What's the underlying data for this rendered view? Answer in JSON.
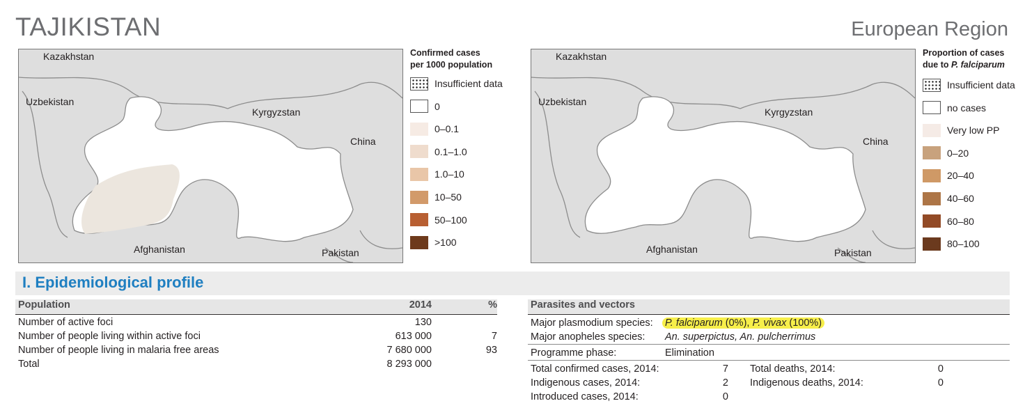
{
  "header": {
    "country": "TAJIKISTAN",
    "region": "European Region"
  },
  "map1": {
    "labels": {
      "kazakhstan": "Kazakhstan",
      "uzbekistan": "Uzbekistan",
      "kyrgyzstan": "Kyrgyzstan",
      "china": "China",
      "afghanistan": "Afghanistan",
      "pakistan": "Pakistan"
    },
    "legend": {
      "title_line1": "Confirmed cases",
      "title_line2": "per 1000 population",
      "items": [
        {
          "label": "Insufficient data",
          "style": "dots",
          "color": "#ffffff"
        },
        {
          "label": "0",
          "style": "outline",
          "color": "#ffffff"
        },
        {
          "label": "0–0.1",
          "style": "fill",
          "color": "#f6ebe4"
        },
        {
          "label": "0.1–1.0",
          "style": "fill",
          "color": "#efdccd"
        },
        {
          "label": "1.0–10",
          "style": "fill",
          "color": "#e9c6a8"
        },
        {
          "label": "10–50",
          "style": "fill",
          "color": "#d29a6a"
        },
        {
          "label": "50–100",
          "style": "fill",
          "color": "#b85f32"
        },
        {
          "label": ">100",
          "style": "fill",
          "color": "#6e3a1c"
        }
      ]
    },
    "colors": {
      "neighbors": "#dedede",
      "country": "#ffffff",
      "focus": "#ece6de"
    }
  },
  "map2": {
    "labels": {
      "kazakhstan": "Kazakhstan",
      "uzbekistan": "Uzbekistan",
      "kyrgyzstan": "Kyrgyzstan",
      "china": "China",
      "afghanistan": "Afghanistan",
      "pakistan": "Pakistan"
    },
    "legend": {
      "title_line1": "Proportion of cases",
      "title_line2_prefix": "due to ",
      "title_line2_italic": "P. falciparum",
      "items": [
        {
          "label": "Insufficient data",
          "style": "dots",
          "color": "#ffffff"
        },
        {
          "label": "no cases",
          "style": "outline",
          "color": "#ffffff"
        },
        {
          "label": "Very low PP",
          "style": "fill",
          "color": "#f5ebe6"
        },
        {
          "label": "0–20",
          "style": "fill",
          "color": "#c8a27d"
        },
        {
          "label": "20–40",
          "style": "fill",
          "color": "#cf9966"
        },
        {
          "label": "40–60",
          "style": "fill",
          "color": "#ad7546"
        },
        {
          "label": "60–80",
          "style": "fill",
          "color": "#924a26"
        },
        {
          "label": "80–100",
          "style": "fill",
          "color": "#6b3a1e"
        }
      ]
    }
  },
  "section": {
    "title": "I. Epidemiological profile"
  },
  "population": {
    "headers": {
      "label": "Population",
      "year": "2014",
      "pct": "%"
    },
    "rows": [
      {
        "label": "Number of active foci",
        "value": "130",
        "pct": ""
      },
      {
        "label": "Number of people living within active foci",
        "value": "613 000",
        "pct": "7"
      },
      {
        "label": "Number of people living in malaria free areas",
        "value": "7 680 000",
        "pct": "93"
      },
      {
        "label": "Total",
        "value": "8 293 000",
        "pct": ""
      }
    ]
  },
  "parasites": {
    "header": "Parasites and vectors",
    "plasmodium_label": "Major plasmodium species:",
    "pf_name": "P. falciparum",
    "pf_pct": " (0%), ",
    "pv_name": "P. vivax",
    "pv_pct": " (100%)",
    "anopheles_label": "Major anopheles species:",
    "anopheles_value": "An. superpictus, An. pulcherrimus",
    "phase_label": "Programme phase:",
    "phase_value": "Elimination",
    "cases": [
      {
        "label": "Total confirmed cases, 2014:",
        "value": "7"
      },
      {
        "label": "Indigenous cases, 2014:",
        "value": "2"
      },
      {
        "label": "Introduced cases, 2014:",
        "value": "0"
      }
    ],
    "deaths": [
      {
        "label": "Total deaths, 2014:",
        "value": "0"
      },
      {
        "label": "Indigenous deaths, 2014:",
        "value": "0"
      }
    ]
  }
}
